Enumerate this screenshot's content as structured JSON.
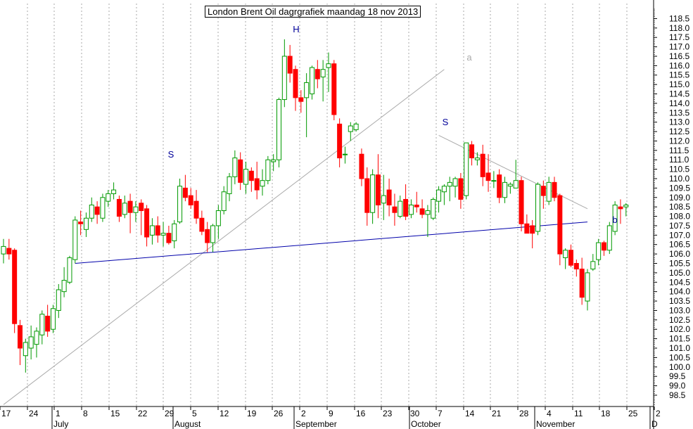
{
  "chart_data": {
    "type": "candlestick",
    "title": "London Brent Oil dagrgrafiek maandag 18 nov 2013",
    "ylim": [
      97.9,
      119.3
    ],
    "y_ticks": [
      98.5,
      99.0,
      99.5,
      100.0,
      100.5,
      101.0,
      101.5,
      102.0,
      102.5,
      103.0,
      103.5,
      104.0,
      104.5,
      105.0,
      105.5,
      106.0,
      106.5,
      107.0,
      107.5,
      108.0,
      108.5,
      109.0,
      109.5,
      110.0,
      110.5,
      111.0,
      111.5,
      112.0,
      112.5,
      113.0,
      113.5,
      114.0,
      114.5,
      115.0,
      115.5,
      116.0,
      116.5,
      117.0,
      117.5,
      118.0,
      118.5
    ],
    "x_day_labels": [
      "17",
      "24",
      "1",
      "8",
      "15",
      "22",
      "29",
      "5",
      "12",
      "19",
      "26",
      "2",
      "9",
      "16",
      "23",
      "30",
      "7",
      "14",
      "21",
      "28",
      "4",
      "11",
      "18",
      "25",
      "2"
    ],
    "x_month_labels": [
      "July",
      "August",
      "September",
      "October",
      "November",
      "D"
    ],
    "annotations": [
      "S",
      "H",
      "S",
      "a",
      "b"
    ],
    "colors": {
      "up": "#009900",
      "down": "#ff0000",
      "neckline": "#0000aa",
      "trendline": "#aaaaaa",
      "grid": "#aaaaaa"
    },
    "grid": true,
    "candles": [
      {
        "o": 106.0,
        "h": 106.8,
        "l": 105.5,
        "c": 106.4
      },
      {
        "o": 106.3,
        "h": 106.8,
        "l": 105.7,
        "c": 106.0
      },
      {
        "o": 106.2,
        "h": 106.3,
        "l": 101.8,
        "c": 102.3
      },
      {
        "o": 102.2,
        "h": 102.5,
        "l": 100.1,
        "c": 101.0
      },
      {
        "o": 100.6,
        "h": 101.5,
        "l": 99.7,
        "c": 101.3
      },
      {
        "o": 101.0,
        "h": 102.2,
        "l": 100.4,
        "c": 101.6
      },
      {
        "o": 101.2,
        "h": 102.1,
        "l": 100.5,
        "c": 101.9
      },
      {
        "o": 101.7,
        "h": 103.0,
        "l": 101.2,
        "c": 102.8
      },
      {
        "o": 102.7,
        "h": 103.3,
        "l": 101.6,
        "c": 101.9
      },
      {
        "o": 102.0,
        "h": 103.3,
        "l": 101.8,
        "c": 103.1
      },
      {
        "o": 103.0,
        "h": 104.4,
        "l": 102.6,
        "c": 104.1
      },
      {
        "o": 104.0,
        "h": 105.3,
        "l": 103.7,
        "c": 104.6
      },
      {
        "o": 104.5,
        "h": 105.9,
        "l": 104.4,
        "c": 105.8
      },
      {
        "o": 105.7,
        "h": 108.0,
        "l": 105.5,
        "c": 107.8
      },
      {
        "o": 107.7,
        "h": 108.3,
        "l": 107.0,
        "c": 107.6
      },
      {
        "o": 107.3,
        "h": 108.2,
        "l": 106.9,
        "c": 107.9
      },
      {
        "o": 107.9,
        "h": 109.0,
        "l": 107.7,
        "c": 108.6
      },
      {
        "o": 108.5,
        "h": 108.8,
        "l": 107.6,
        "c": 108.1
      },
      {
        "o": 107.9,
        "h": 109.2,
        "l": 107.7,
        "c": 109.0
      },
      {
        "o": 108.8,
        "h": 109.4,
        "l": 108.5,
        "c": 109.2
      },
      {
        "o": 109.2,
        "h": 109.8,
        "l": 108.9,
        "c": 109.4
      },
      {
        "o": 108.9,
        "h": 109.1,
        "l": 107.7,
        "c": 108.0
      },
      {
        "o": 108.1,
        "h": 109.1,
        "l": 107.9,
        "c": 108.7
      },
      {
        "o": 108.8,
        "h": 109.2,
        "l": 107.1,
        "c": 108.2
      },
      {
        "o": 108.2,
        "h": 108.8,
        "l": 107.7,
        "c": 108.5
      },
      {
        "o": 108.7,
        "h": 108.9,
        "l": 107.0,
        "c": 108.3
      },
      {
        "o": 108.4,
        "h": 108.6,
        "l": 106.4,
        "c": 106.9
      },
      {
        "o": 107.0,
        "h": 107.9,
        "l": 106.5,
        "c": 107.5
      },
      {
        "o": 107.5,
        "h": 108.0,
        "l": 106.6,
        "c": 107.0
      },
      {
        "o": 107.0,
        "h": 107.7,
        "l": 106.4,
        "c": 107.1
      },
      {
        "o": 107.1,
        "h": 107.5,
        "l": 106.5,
        "c": 106.6
      },
      {
        "o": 106.7,
        "h": 107.8,
        "l": 106.3,
        "c": 107.6
      },
      {
        "o": 107.7,
        "h": 110.0,
        "l": 107.6,
        "c": 109.6
      },
      {
        "o": 109.5,
        "h": 110.2,
        "l": 108.8,
        "c": 109.0
      },
      {
        "o": 109.1,
        "h": 109.5,
        "l": 108.4,
        "c": 108.6
      },
      {
        "o": 108.8,
        "h": 109.4,
        "l": 107.6,
        "c": 107.9
      },
      {
        "o": 107.9,
        "h": 108.3,
        "l": 107.0,
        "c": 107.2
      },
      {
        "o": 107.3,
        "h": 107.7,
        "l": 106.1,
        "c": 106.6
      },
      {
        "o": 106.6,
        "h": 107.6,
        "l": 106.1,
        "c": 107.5
      },
      {
        "o": 107.5,
        "h": 108.6,
        "l": 106.8,
        "c": 108.3
      },
      {
        "o": 108.3,
        "h": 109.6,
        "l": 108.1,
        "c": 109.3
      },
      {
        "o": 109.2,
        "h": 110.3,
        "l": 108.8,
        "c": 110.1
      },
      {
        "o": 110.1,
        "h": 111.5,
        "l": 109.7,
        "c": 111.1
      },
      {
        "o": 111.0,
        "h": 111.4,
        "l": 109.4,
        "c": 109.8
      },
      {
        "o": 109.7,
        "h": 110.9,
        "l": 109.2,
        "c": 110.5
      },
      {
        "o": 110.4,
        "h": 110.6,
        "l": 109.3,
        "c": 109.9
      },
      {
        "o": 110.0,
        "h": 110.9,
        "l": 108.9,
        "c": 109.4
      },
      {
        "o": 109.6,
        "h": 110.5,
        "l": 109.1,
        "c": 109.9
      },
      {
        "o": 109.9,
        "h": 111.2,
        "l": 109.7,
        "c": 111.0
      },
      {
        "o": 110.9,
        "h": 111.3,
        "l": 110.4,
        "c": 111.0
      },
      {
        "o": 111.0,
        "h": 114.3,
        "l": 110.6,
        "c": 114.2
      },
      {
        "o": 114.2,
        "h": 117.4,
        "l": 113.8,
        "c": 116.5
      },
      {
        "o": 116.5,
        "h": 117.1,
        "l": 115.1,
        "c": 115.6
      },
      {
        "o": 115.8,
        "h": 116.0,
        "l": 113.6,
        "c": 114.3
      },
      {
        "o": 114.3,
        "h": 114.7,
        "l": 113.5,
        "c": 114.1
      },
      {
        "o": 114.3,
        "h": 115.6,
        "l": 112.2,
        "c": 115.1
      },
      {
        "o": 114.5,
        "h": 116.0,
        "l": 114.2,
        "c": 115.9
      },
      {
        "o": 115.8,
        "h": 116.3,
        "l": 114.8,
        "c": 115.3
      },
      {
        "o": 115.4,
        "h": 116.3,
        "l": 114.1,
        "c": 115.8
      },
      {
        "o": 115.9,
        "h": 116.7,
        "l": 114.6,
        "c": 116.1
      },
      {
        "o": 116.1,
        "h": 116.3,
        "l": 113.1,
        "c": 113.4
      },
      {
        "o": 112.9,
        "h": 113.2,
        "l": 110.6,
        "c": 111.1
      },
      {
        "o": 111.3,
        "h": 111.7,
        "l": 110.8,
        "c": 111.3
      },
      {
        "o": 112.5,
        "h": 113.0,
        "l": 112.0,
        "c": 112.8
      },
      {
        "o": 112.6,
        "h": 113.0,
        "l": 112.5,
        "c": 112.9
      },
      {
        "o": 111.3,
        "h": 111.6,
        "l": 109.6,
        "c": 110.0
      },
      {
        "o": 110.0,
        "h": 110.6,
        "l": 107.5,
        "c": 108.2
      },
      {
        "o": 108.2,
        "h": 110.5,
        "l": 107.6,
        "c": 110.2
      },
      {
        "o": 110.2,
        "h": 111.3,
        "l": 107.9,
        "c": 108.6
      },
      {
        "o": 108.7,
        "h": 110.2,
        "l": 107.8,
        "c": 109.1
      },
      {
        "o": 109.4,
        "h": 110.0,
        "l": 108.0,
        "c": 108.6
      },
      {
        "o": 108.5,
        "h": 109.2,
        "l": 107.5,
        "c": 108.2
      },
      {
        "o": 108.0,
        "h": 109.1,
        "l": 107.9,
        "c": 108.8
      },
      {
        "o": 108.9,
        "h": 109.7,
        "l": 107.8,
        "c": 108.0
      },
      {
        "o": 108.1,
        "h": 108.9,
        "l": 107.9,
        "c": 108.6
      },
      {
        "o": 108.6,
        "h": 109.3,
        "l": 108.2,
        "c": 108.5
      },
      {
        "o": 108.4,
        "h": 108.9,
        "l": 107.9,
        "c": 108.1
      },
      {
        "o": 108.1,
        "h": 108.6,
        "l": 106.9,
        "c": 108.3
      },
      {
        "o": 107.9,
        "h": 109.0,
        "l": 107.8,
        "c": 108.9
      },
      {
        "o": 108.8,
        "h": 109.6,
        "l": 108.2,
        "c": 109.4
      },
      {
        "o": 109.3,
        "h": 109.7,
        "l": 108.6,
        "c": 109.6
      },
      {
        "o": 109.6,
        "h": 110.1,
        "l": 108.8,
        "c": 109.8
      },
      {
        "o": 109.6,
        "h": 110.1,
        "l": 109.0,
        "c": 110.0
      },
      {
        "o": 110.0,
        "h": 110.3,
        "l": 108.4,
        "c": 108.9
      },
      {
        "o": 109.1,
        "h": 111.9,
        "l": 108.9,
        "c": 111.9
      },
      {
        "o": 111.8,
        "h": 112.0,
        "l": 110.7,
        "c": 111.1
      },
      {
        "o": 111.0,
        "h": 111.4,
        "l": 110.7,
        "c": 111.1
      },
      {
        "o": 111.3,
        "h": 111.8,
        "l": 109.6,
        "c": 110.1
      },
      {
        "o": 110.3,
        "h": 111.3,
        "l": 109.3,
        "c": 109.9
      },
      {
        "o": 109.9,
        "h": 110.4,
        "l": 109.5,
        "c": 109.9
      },
      {
        "o": 110.2,
        "h": 110.5,
        "l": 108.7,
        "c": 109.0
      },
      {
        "o": 109.0,
        "h": 110.1,
        "l": 108.7,
        "c": 109.8
      },
      {
        "o": 109.6,
        "h": 109.8,
        "l": 109.2,
        "c": 109.7
      },
      {
        "o": 109.5,
        "h": 111.0,
        "l": 109.5,
        "c": 109.9
      },
      {
        "o": 109.9,
        "h": 110.1,
        "l": 107.2,
        "c": 107.6
      },
      {
        "o": 107.6,
        "h": 108.1,
        "l": 107.2,
        "c": 107.1
      },
      {
        "o": 107.5,
        "h": 107.8,
        "l": 106.3,
        "c": 107.1
      },
      {
        "o": 107.2,
        "h": 109.8,
        "l": 107.0,
        "c": 109.7
      },
      {
        "o": 109.6,
        "h": 109.9,
        "l": 108.4,
        "c": 109.1
      },
      {
        "o": 108.8,
        "h": 110.1,
        "l": 108.6,
        "c": 109.8
      },
      {
        "o": 109.8,
        "h": 110.1,
        "l": 108.8,
        "c": 109.0
      },
      {
        "o": 109.1,
        "h": 109.2,
        "l": 105.4,
        "c": 106.0
      },
      {
        "o": 105.8,
        "h": 106.3,
        "l": 105.2,
        "c": 106.2
      },
      {
        "o": 106.2,
        "h": 106.5,
        "l": 105.3,
        "c": 105.4
      },
      {
        "o": 105.5,
        "h": 105.7,
        "l": 104.8,
        "c": 105.2
      },
      {
        "o": 105.2,
        "h": 105.8,
        "l": 103.3,
        "c": 103.7
      },
      {
        "o": 103.5,
        "h": 105.2,
        "l": 103.0,
        "c": 105.0
      },
      {
        "o": 105.2,
        "h": 106.0,
        "l": 105.1,
        "c": 105.6
      },
      {
        "o": 105.7,
        "h": 106.8,
        "l": 105.4,
        "c": 106.6
      },
      {
        "o": 106.6,
        "h": 106.7,
        "l": 105.9,
        "c": 106.2
      },
      {
        "o": 106.2,
        "h": 107.7,
        "l": 106.0,
        "c": 107.5
      },
      {
        "o": 107.2,
        "h": 108.8,
        "l": 107.0,
        "c": 108.6
      },
      {
        "o": 108.5,
        "h": 108.9,
        "l": 107.6,
        "c": 108.4
      },
      {
        "o": 108.5,
        "h": 108.7,
        "l": 108.0,
        "c": 108.6
      }
    ],
    "trendlines": [
      {
        "name": "a",
        "from": {
          "bar": 0,
          "price": 98.0
        },
        "to": {
          "bar": 80,
          "price": 115.8
        }
      },
      {
        "name": "shoulder-line",
        "from": {
          "bar": 79,
          "price": 112.3
        },
        "to": {
          "bar": 106,
          "price": 108.4
        }
      },
      {
        "name": "b",
        "from": {
          "bar": 13,
          "price": 105.5
        },
        "to": {
          "bar": 106,
          "price": 107.7
        }
      }
    ]
  }
}
